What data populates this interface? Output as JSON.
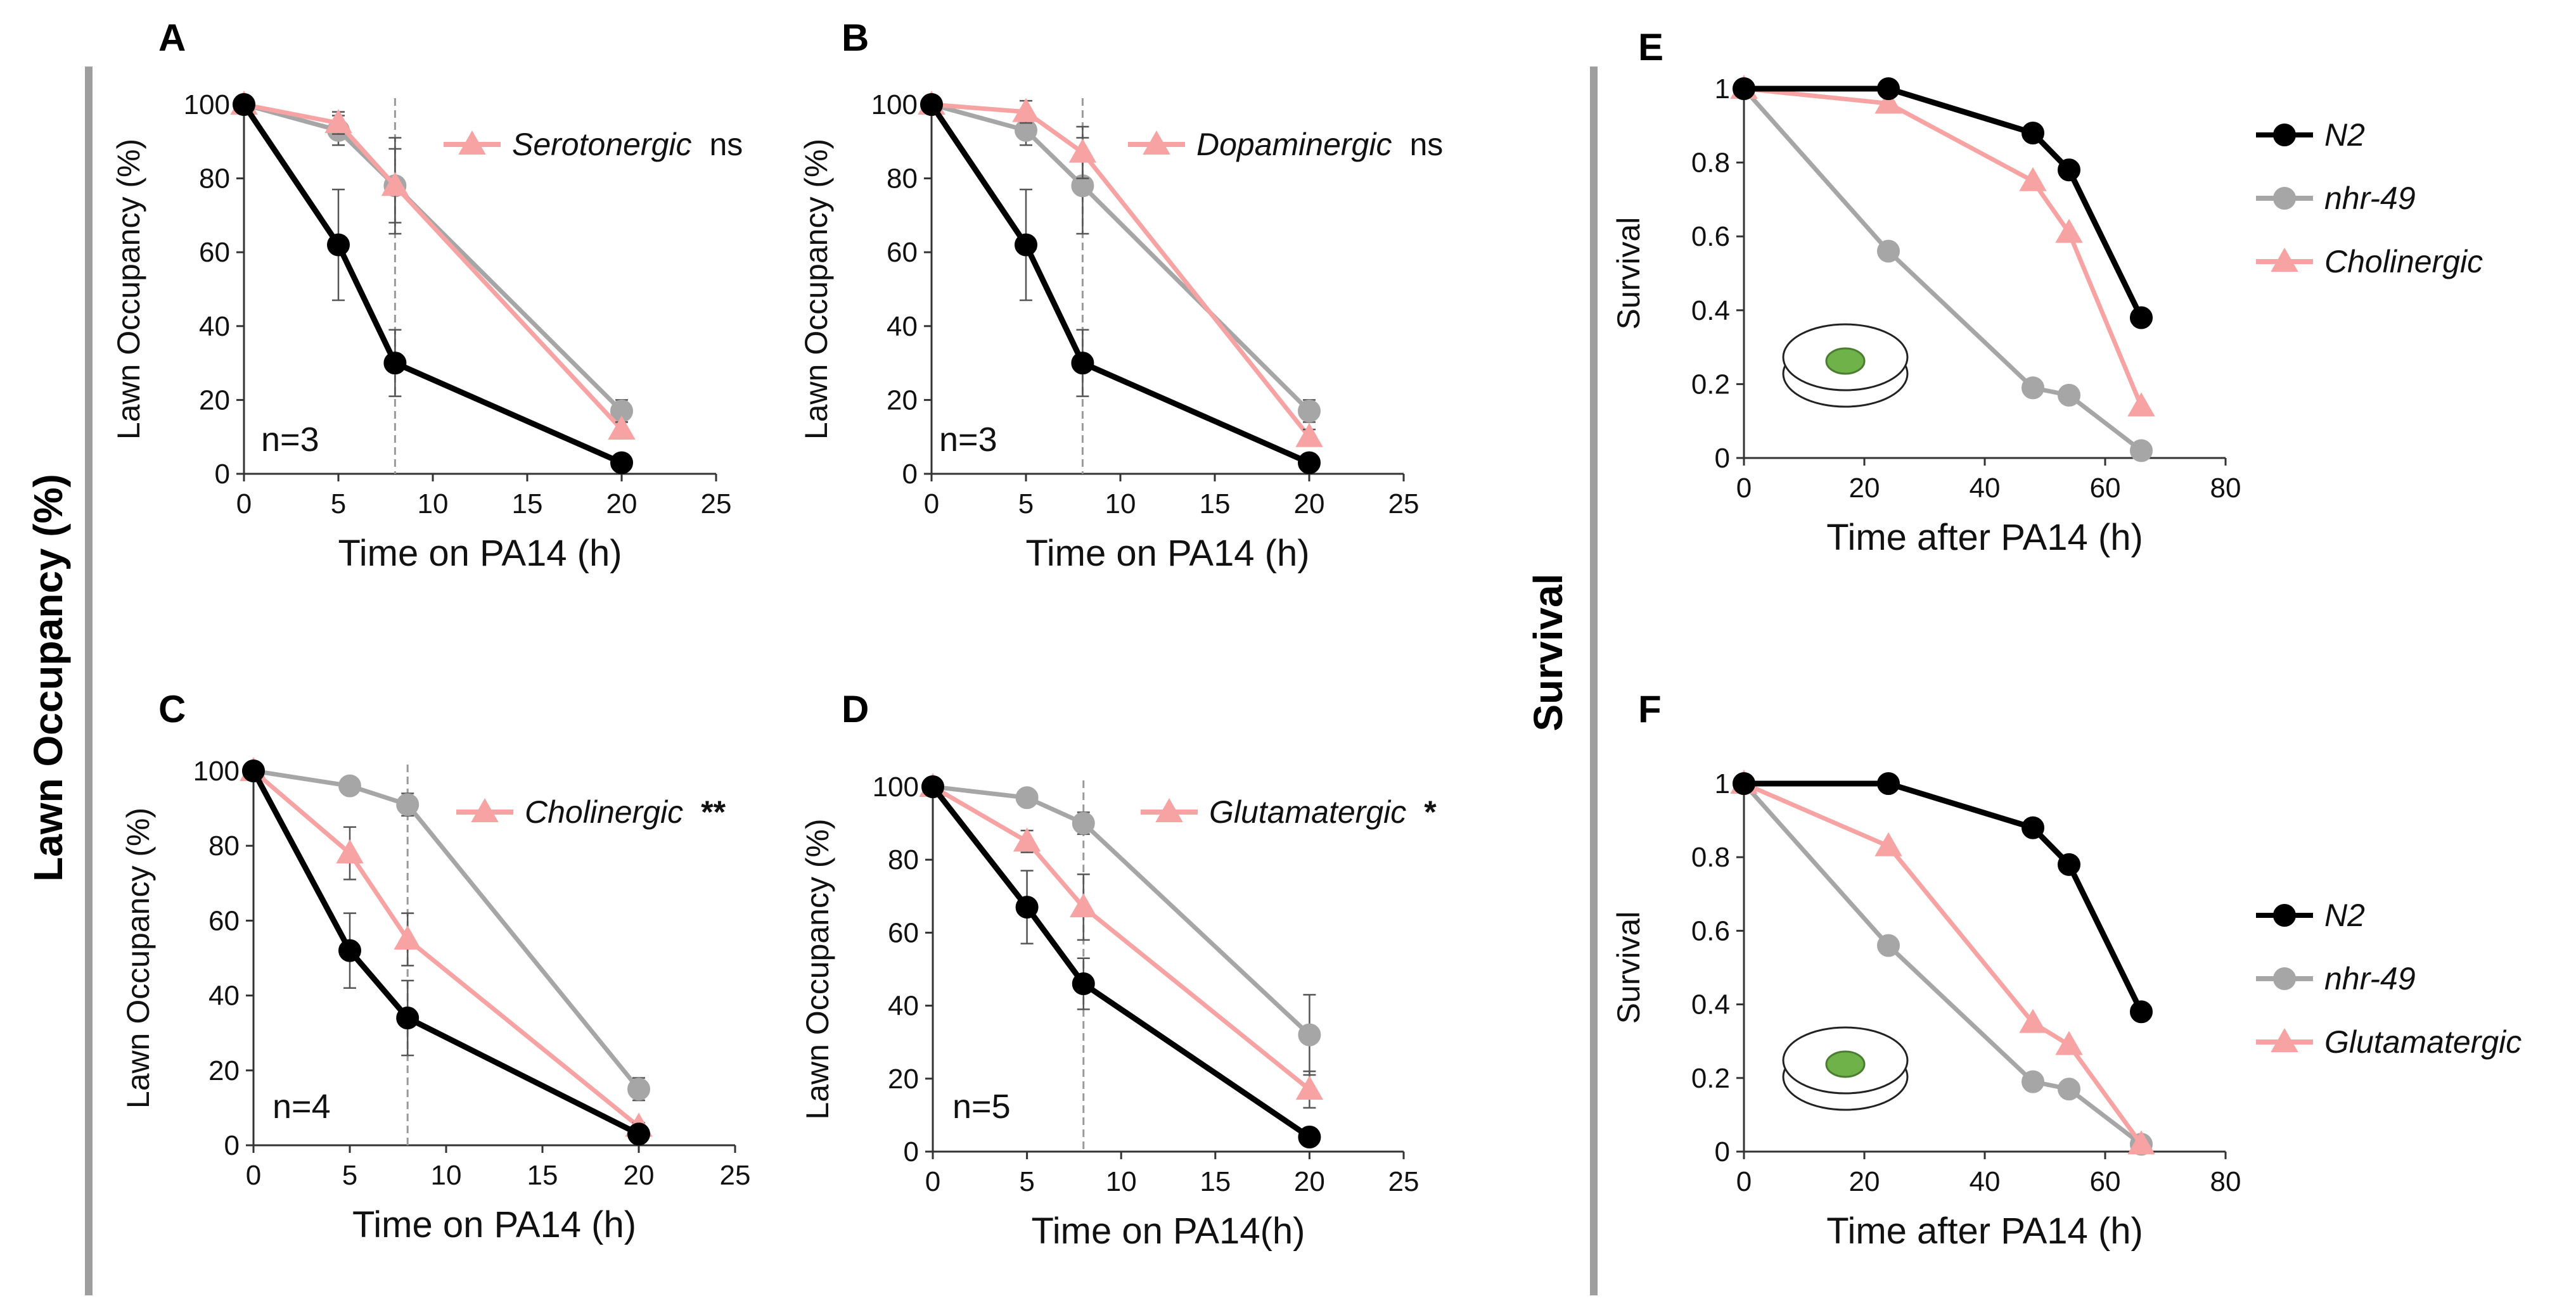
{
  "figure": {
    "left_group_label": "Lawn Occupancy (%)",
    "right_group_label": "Survival"
  },
  "colors": {
    "n2": "#000000",
    "nhr49": "#a6a6a6",
    "pink": "#f7a3a3",
    "plate_fill": "#6fb24a",
    "plate_stroke": "#4a7d30"
  },
  "chart_data": [
    {
      "panel": "A",
      "type": "line",
      "title": "",
      "xlabel": "Time on PA14 (h)",
      "ylabel": "Lawn Occupancy (%)",
      "xlim": [
        0,
        25
      ],
      "ylim": [
        0,
        100
      ],
      "xticks": [
        0,
        5,
        10,
        15,
        20,
        25
      ],
      "yticks": [
        0,
        20,
        40,
        60,
        80,
        100
      ],
      "vline_x": 8,
      "n_label": "n=3",
      "series": [
        {
          "key": "n2",
          "name": "N2",
          "marker": "circle",
          "x": [
            0,
            5,
            8,
            20
          ],
          "values": [
            100,
            62,
            30,
            3
          ],
          "err": [
            0,
            15,
            9,
            1
          ]
        },
        {
          "key": "nhr49",
          "name": "nhr-49",
          "marker": "circle",
          "x": [
            0,
            5,
            8,
            20
          ],
          "values": [
            100,
            93,
            78,
            17
          ],
          "err": [
            0,
            4,
            13,
            3
          ]
        },
        {
          "key": "pink",
          "name": "Serotonergic",
          "marker": "triangle",
          "x": [
            0,
            5,
            8,
            20
          ],
          "values": [
            100,
            95,
            78,
            12
          ],
          "err": [
            0,
            3,
            10,
            2
          ]
        }
      ],
      "legend": [
        {
          "key": "pink",
          "label": "Serotonergic",
          "sig": "ns"
        }
      ]
    },
    {
      "panel": "B",
      "type": "line",
      "title": "",
      "xlabel": "Time on PA14 (h)",
      "ylabel": "Lawn Occupancy (%)",
      "xlim": [
        0,
        25
      ],
      "ylim": [
        0,
        100
      ],
      "xticks": [
        0,
        5,
        10,
        15,
        20,
        25
      ],
      "yticks": [
        0,
        20,
        40,
        60,
        80,
        100
      ],
      "vline_x": 8,
      "n_label": "n=3",
      "series": [
        {
          "key": "n2",
          "name": "N2",
          "marker": "circle",
          "x": [
            0,
            5,
            8,
            20
          ],
          "values": [
            100,
            62,
            30,
            3
          ],
          "err": [
            0,
            15,
            9,
            1
          ]
        },
        {
          "key": "nhr49",
          "name": "nhr-49",
          "marker": "circle",
          "x": [
            0,
            5,
            8,
            20
          ],
          "values": [
            100,
            93,
            78,
            17
          ],
          "err": [
            0,
            4,
            13,
            3
          ]
        },
        {
          "key": "pink",
          "name": "Dopaminergic",
          "marker": "triangle",
          "x": [
            0,
            5,
            8,
            20
          ],
          "values": [
            100,
            98,
            87,
            10
          ],
          "err": [
            0,
            3,
            7,
            2
          ]
        }
      ],
      "legend": [
        {
          "key": "pink",
          "label": "Dopaminergic",
          "sig": "ns"
        }
      ]
    },
    {
      "panel": "C",
      "type": "line",
      "title": "",
      "xlabel": "Time on PA14 (h)",
      "ylabel": "Lawn Occupancy (%)",
      "xlim": [
        0,
        25
      ],
      "ylim": [
        0,
        100
      ],
      "xticks": [
        0,
        5,
        10,
        15,
        20,
        25
      ],
      "yticks": [
        0,
        20,
        40,
        60,
        80,
        100
      ],
      "vline_x": 8,
      "n_label": "n=4",
      "series": [
        {
          "key": "n2",
          "name": "N2",
          "marker": "circle",
          "x": [
            0,
            5,
            8,
            20
          ],
          "values": [
            100,
            52,
            34,
            3
          ],
          "err": [
            0,
            10,
            10,
            1
          ]
        },
        {
          "key": "nhr49",
          "name": "nhr-49",
          "marker": "circle",
          "x": [
            0,
            5,
            8,
            20
          ],
          "values": [
            100,
            96,
            91,
            15
          ],
          "err": [
            0,
            2,
            3,
            3
          ]
        },
        {
          "key": "pink",
          "name": "Cholinergic",
          "marker": "triangle",
          "x": [
            0,
            5,
            8,
            20
          ],
          "values": [
            100,
            78,
            55,
            5
          ],
          "err": [
            0,
            7,
            7,
            1
          ]
        }
      ],
      "legend": [
        {
          "key": "pink",
          "label": "Cholinergic",
          "sig": "**"
        }
      ]
    },
    {
      "panel": "D",
      "type": "line",
      "title": "",
      "xlabel": "Time on PA14(h)",
      "ylabel": "Lawn Occupancy (%)",
      "xlim": [
        0,
        25
      ],
      "ylim": [
        0,
        100
      ],
      "xticks": [
        0,
        5,
        10,
        15,
        20,
        25
      ],
      "yticks": [
        0,
        20,
        40,
        60,
        80,
        100
      ],
      "vline_x": 8,
      "n_label": "n=5",
      "series": [
        {
          "key": "n2",
          "name": "N2",
          "marker": "circle",
          "x": [
            0,
            5,
            8,
            20
          ],
          "values": [
            100,
            67,
            46,
            4
          ],
          "err": [
            0,
            10,
            7,
            1
          ]
        },
        {
          "key": "nhr49",
          "name": "nhr-49",
          "marker": "circle",
          "x": [
            0,
            5,
            8,
            20
          ],
          "values": [
            100,
            97,
            90,
            32
          ],
          "err": [
            0,
            2,
            3,
            11
          ]
        },
        {
          "key": "pink",
          "name": "Glutamatergic",
          "marker": "triangle",
          "x": [
            0,
            5,
            8,
            20
          ],
          "values": [
            100,
            85,
            67,
            17
          ],
          "err": [
            0,
            3,
            9,
            5
          ]
        }
      ],
      "legend": [
        {
          "key": "pink",
          "label": "Glutamatergic",
          "sig": "*"
        }
      ]
    },
    {
      "panel": "E",
      "type": "line",
      "title": "",
      "xlabel": "Time after PA14 (h)",
      "ylabel": "Survival",
      "xlim": [
        0,
        80
      ],
      "ylim": [
        0,
        1
      ],
      "xticks": [
        0,
        20,
        40,
        60,
        80
      ],
      "yticks": [
        "0",
        "0.2",
        "0.4",
        "0.6",
        "0.8",
        "1"
      ],
      "series": [
        {
          "key": "n2",
          "name": "N2",
          "marker": "circle",
          "x": [
            0,
            24,
            48,
            54,
            66
          ],
          "values": [
            1,
            1,
            0.88,
            0.78,
            0.38
          ]
        },
        {
          "key": "nhr49",
          "name": "nhr-49",
          "marker": "circle",
          "x": [
            0,
            24,
            48,
            54,
            66
          ],
          "values": [
            1,
            0.56,
            0.19,
            0.17,
            0.02
          ]
        },
        {
          "key": "pink",
          "name": "Cholinergic",
          "marker": "triangle",
          "x": [
            0,
            24,
            48,
            54,
            66
          ],
          "values": [
            1,
            0.96,
            0.75,
            0.61,
            0.14
          ]
        }
      ],
      "legend": [
        {
          "key": "n2",
          "label": "N2"
        },
        {
          "key": "nhr49",
          "label": "nhr-49"
        },
        {
          "key": "pink",
          "label": "Cholinergic"
        }
      ]
    },
    {
      "panel": "F",
      "type": "line",
      "title": "",
      "xlabel": "Time after PA14 (h)",
      "ylabel": "Survival",
      "xlim": [
        0,
        80
      ],
      "ylim": [
        0,
        1
      ],
      "xticks": [
        0,
        20,
        40,
        60,
        80
      ],
      "yticks": [
        "0",
        "0.2",
        "0.4",
        "0.6",
        "0.8",
        "1"
      ],
      "series": [
        {
          "key": "n2",
          "name": "N2",
          "marker": "circle",
          "x": [
            0,
            24,
            48,
            54,
            66
          ],
          "values": [
            1,
            1,
            0.88,
            0.78,
            0.38
          ]
        },
        {
          "key": "nhr49",
          "name": "nhr-49",
          "marker": "circle",
          "x": [
            0,
            24,
            48,
            54,
            66
          ],
          "values": [
            1,
            0.56,
            0.19,
            0.17,
            0.02
          ]
        },
        {
          "key": "pink",
          "name": "Glutamatergic",
          "marker": "triangle",
          "x": [
            0,
            24,
            48,
            54,
            66
          ],
          "values": [
            1,
            0.83,
            0.35,
            0.29,
            0.02
          ]
        }
      ],
      "legend": [
        {
          "key": "n2",
          "label": "N2"
        },
        {
          "key": "nhr49",
          "label": "nhr-49"
        },
        {
          "key": "pink",
          "label": "Glutamatergic"
        }
      ]
    }
  ]
}
